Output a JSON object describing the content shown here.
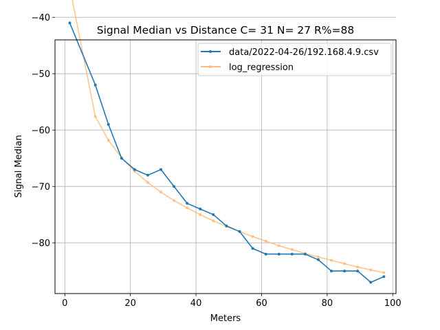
{
  "chart_data": {
    "type": "line",
    "title": "Signal Median vs Distance  C= 31 N= 27 R%=88",
    "xlabel": "Meters",
    "ylabel": "Signal Median",
    "xlim": [
      -3,
      101
    ],
    "ylim": [
      -89,
      -44
    ],
    "x_ticks": [
      0,
      20,
      40,
      60,
      80,
      100
    ],
    "y_ticks": [
      -40,
      -50,
      -60,
      -70,
      -80
    ],
    "x_tick_labels": [
      "0",
      "20",
      "40",
      "60",
      "80",
      "100"
    ],
    "y_tick_labels": [
      "−40",
      "−50",
      "−60",
      "−70",
      "−80"
    ],
    "grid": true,
    "legend_position": "top-right",
    "series": [
      {
        "name": "data/2022-04-26/192.168.4.9.csv",
        "color": "#1f77b4",
        "x": [
          1.5,
          9.3,
          13.3,
          17.3,
          21.3,
          25.3,
          29.3,
          33.3,
          37.3,
          41.3,
          45.3,
          49.3,
          53.3,
          57.3,
          61.3,
          65.3,
          69.3,
          73.3,
          77.3,
          81.3,
          85.3,
          89.3,
          93.3,
          97.3
        ],
        "y": [
          -41,
          -52,
          -59,
          -65,
          -67,
          -68,
          -67,
          -70,
          -73,
          -74,
          -75,
          -77,
          -78,
          -81,
          -82,
          -82,
          -82,
          -82,
          -83,
          -85,
          -85,
          -85,
          -87,
          -86
        ]
      },
      {
        "name": "log_regression",
        "color": "#ffbb78",
        "x": [
          1.5,
          9.3,
          13.3,
          17.3,
          21.3,
          25.3,
          29.3,
          33.3,
          37.3,
          41.3,
          45.3,
          49.3,
          53.3,
          57.3,
          61.3,
          65.3,
          69.3,
          73.3,
          77.3,
          81.3,
          85.3,
          89.3,
          93.3,
          97.3
        ],
        "y": [
          -34.6,
          -57.6,
          -61.8,
          -64.9,
          -67.3,
          -69.3,
          -71.0,
          -72.5,
          -73.8,
          -75.0,
          -76.1,
          -77.1,
          -78.0,
          -78.9,
          -79.7,
          -80.5,
          -81.2,
          -81.9,
          -82.5,
          -83.1,
          -83.7,
          -84.3,
          -84.8,
          -85.3
        ]
      }
    ]
  }
}
